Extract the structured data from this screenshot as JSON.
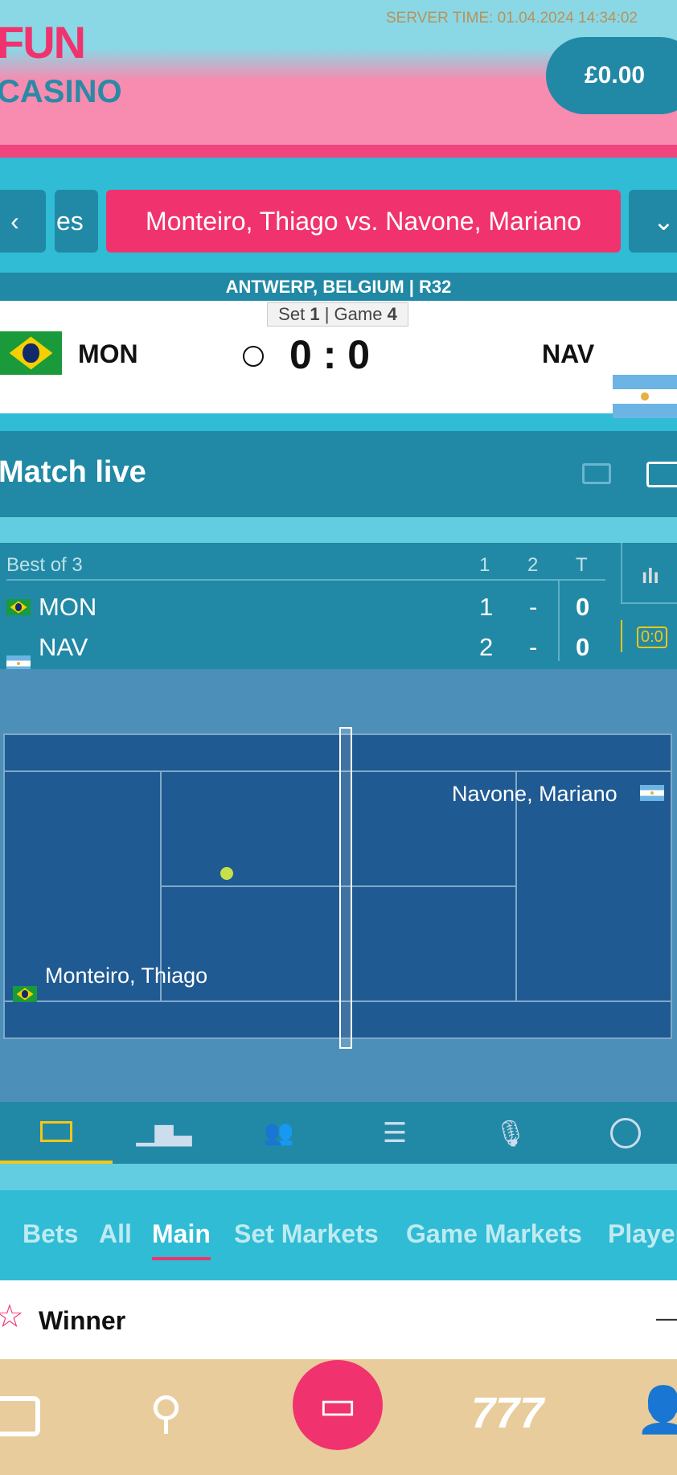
{
  "header": {
    "logo_line1": "FUN",
    "logo_line2": "CASINO",
    "server_time": "SERVER TIME: 01.04.2024 14:34:02",
    "balance": "£0.00"
  },
  "events": {
    "prev_partial": "es",
    "active": "Monteiro, Thiago vs. Navone, Mariano"
  },
  "location": "ANTWERP, BELGIUM  |  R32",
  "score": {
    "set_label": "Set",
    "set": "1",
    "game_label": "Game",
    "game": "4",
    "home_abbr": "MON",
    "away_abbr": "NAV",
    "home_score": "0",
    "away_score": "0",
    "sep": ":"
  },
  "match_live": {
    "title": "Match live"
  },
  "board": {
    "format": "Best of 3",
    "cols": [
      "1",
      "2",
      "T"
    ],
    "rows": [
      {
        "abbr": "MON",
        "s1": "1",
        "s2": "-",
        "t": "0"
      },
      {
        "abbr": "NAV",
        "s1": "2",
        "s2": "-",
        "t": "0"
      }
    ],
    "point_score": "0:0"
  },
  "court": {
    "home_player": "Monteiro, Thiago",
    "away_player": "Navone, Mariano"
  },
  "market_tabs": [
    "Bets",
    "All",
    "Main",
    "Set Markets",
    "Game Markets",
    "Player"
  ],
  "active_market_tab": "Main",
  "winner": {
    "title": "Winner",
    "toggle": "—"
  },
  "colors": {
    "accent": "#f0336f",
    "teal": "#2189a5",
    "light_teal": "#2fbcd4",
    "highlight": "#f5c518"
  }
}
